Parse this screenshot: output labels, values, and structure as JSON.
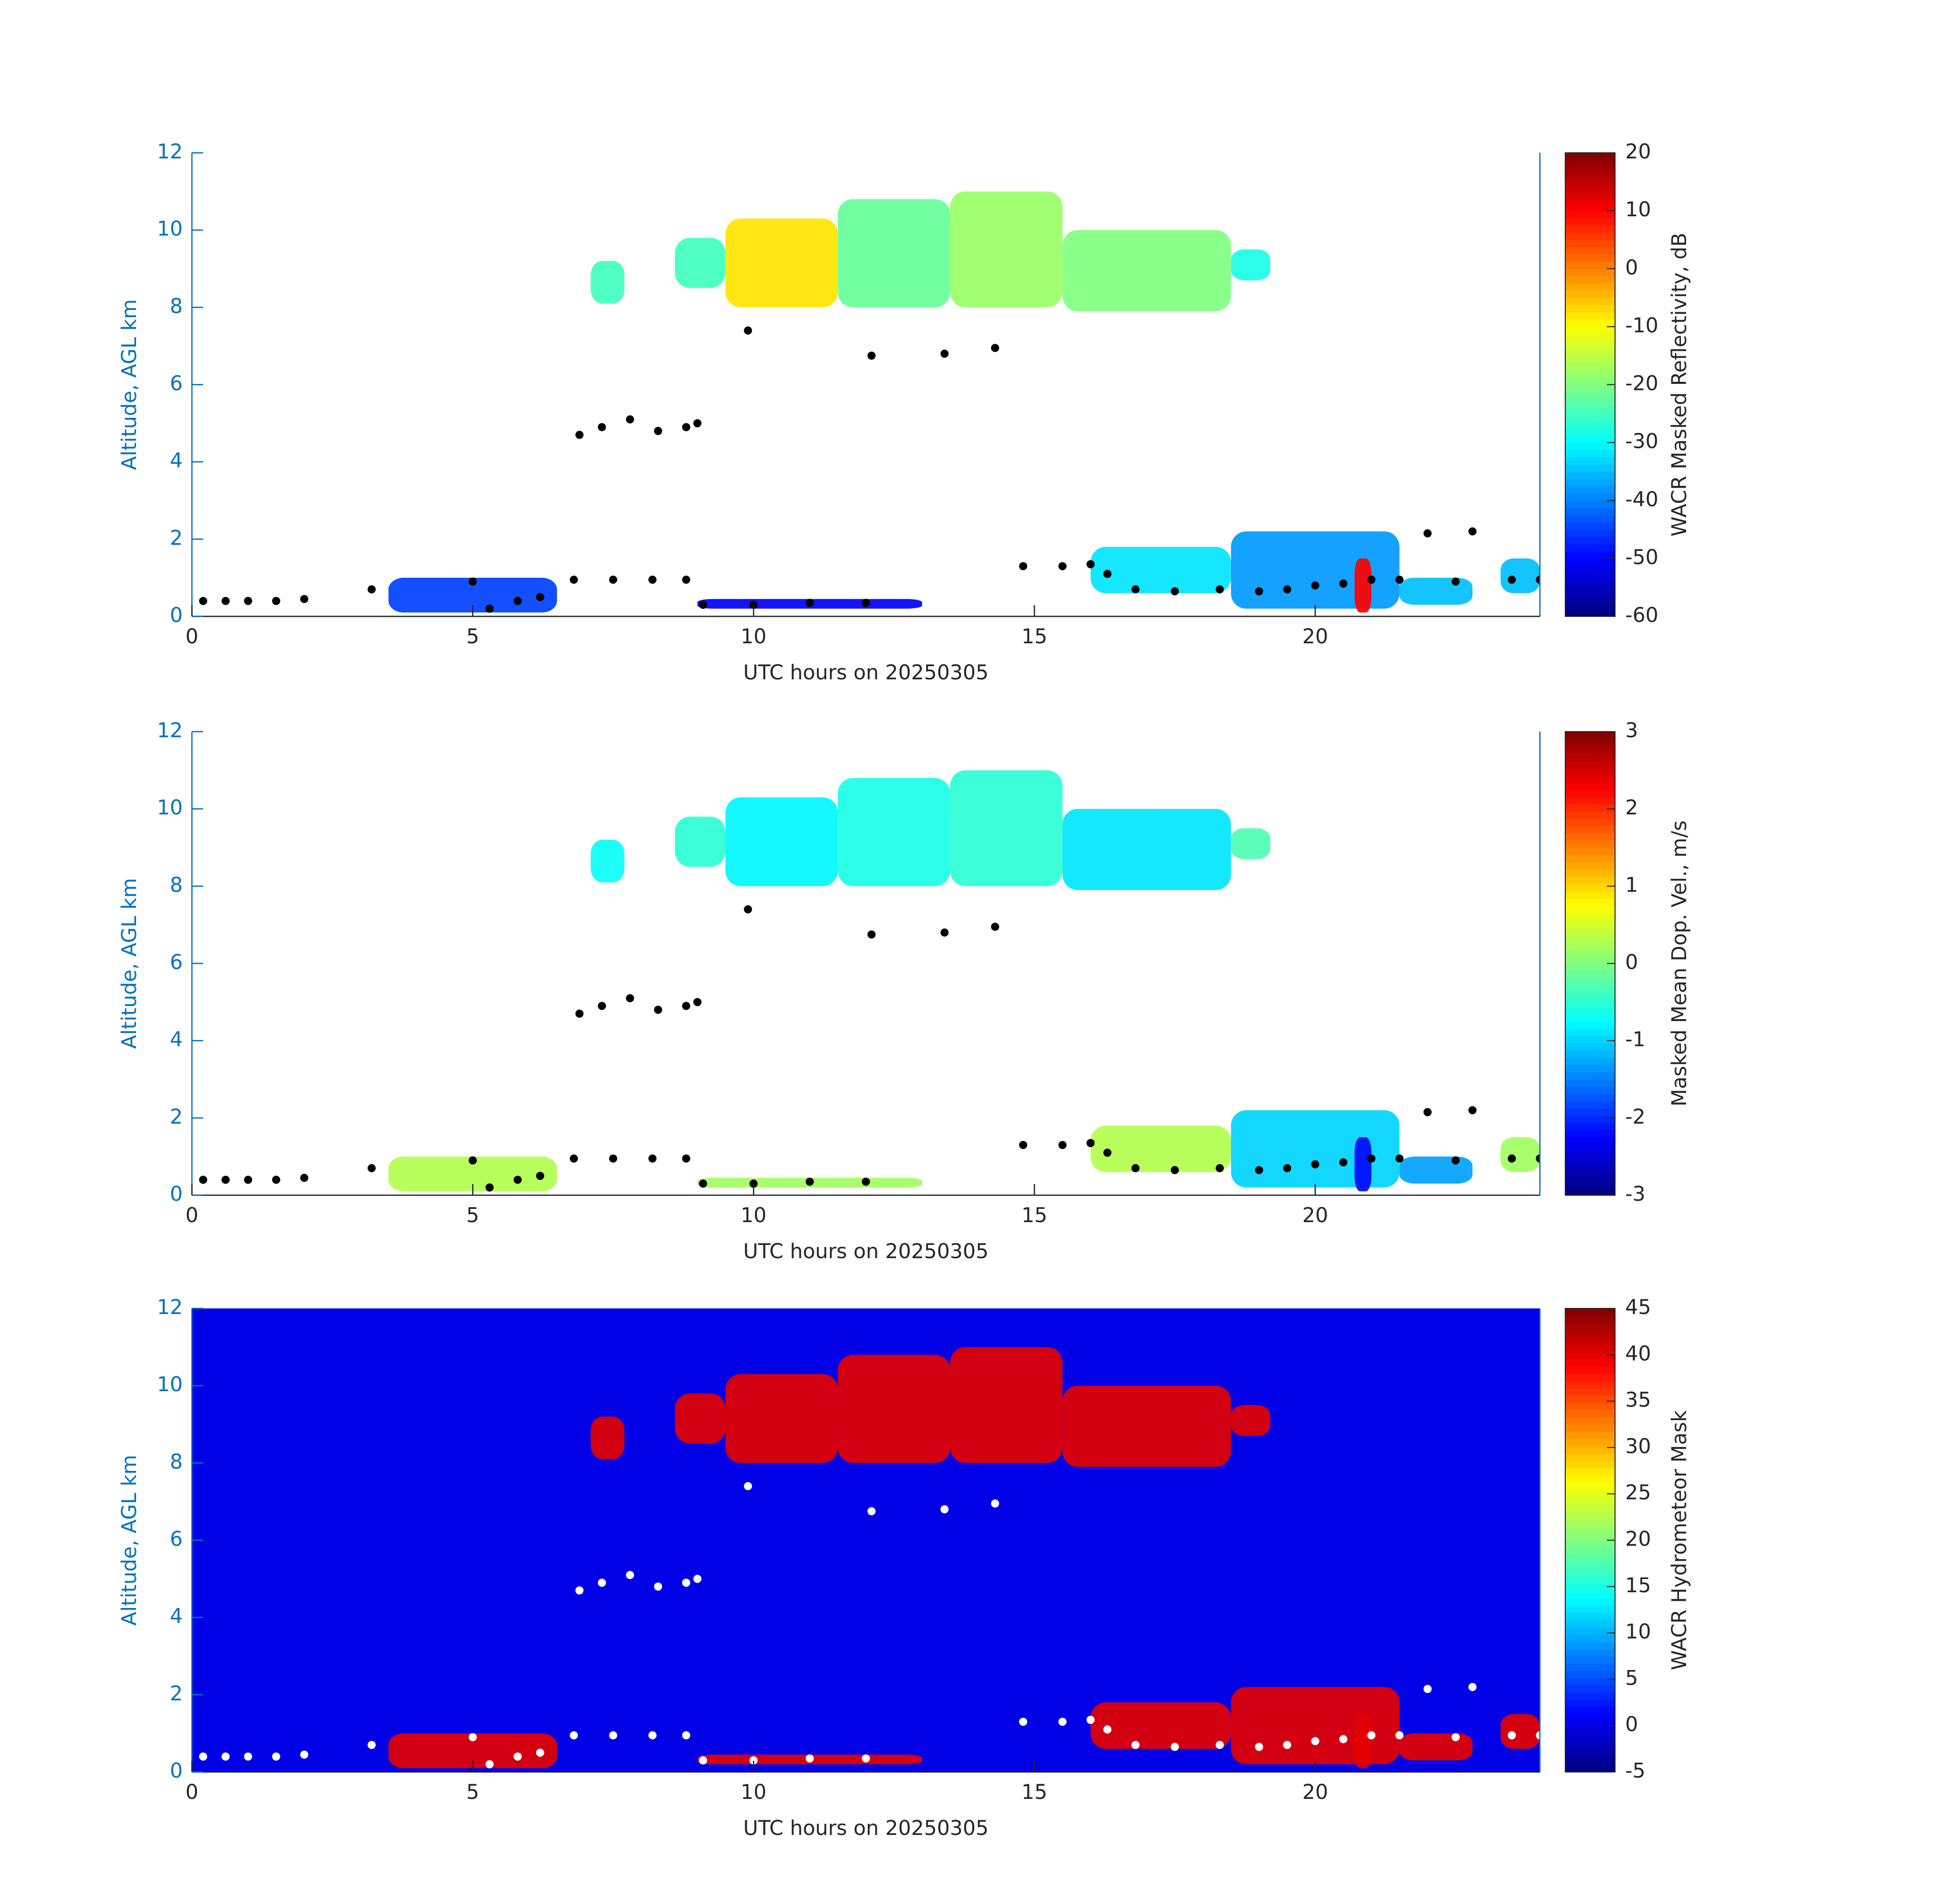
{
  "chart_data": [
    {
      "type": "heatmap",
      "colormap": "jet",
      "x_label": "UTC hours on 20250305",
      "y_label": "Altitude, AGL km",
      "colorbar_label": "WACR Masked Reflectivity, dB",
      "xlim": [
        0,
        24
      ],
      "xticks": [
        0,
        5,
        10,
        15,
        20
      ],
      "ylim": [
        0,
        12
      ],
      "yticks": [
        0,
        2,
        4,
        6,
        8,
        10,
        12
      ],
      "clim": [
        -60,
        20
      ],
      "cticks": [
        -60,
        -50,
        -40,
        -30,
        -20,
        -10,
        0,
        10,
        20
      ],
      "regions": [
        {
          "x": [
            7.1,
            7.7
          ],
          "y": [
            8.1,
            9.2
          ],
          "value": -25
        },
        {
          "x": [
            8.6,
            9.5
          ],
          "y": [
            8.5,
            9.8
          ],
          "value": -25
        },
        {
          "x": [
            9.5,
            11.5
          ],
          "y": [
            8.0,
            10.3
          ],
          "value": -8
        },
        {
          "x": [
            11.5,
            13.5
          ],
          "y": [
            8.0,
            10.8
          ],
          "value": -22
        },
        {
          "x": [
            13.5,
            15.5
          ],
          "y": [
            8.0,
            11.0
          ],
          "value": -18
        },
        {
          "x": [
            15.5,
            18.5
          ],
          "y": [
            7.9,
            10.0
          ],
          "value": -20
        },
        {
          "x": [
            18.5,
            19.2
          ],
          "y": [
            8.7,
            9.5
          ],
          "value": -28
        },
        {
          "x": [
            3.5,
            6.5
          ],
          "y": [
            0.1,
            1.0
          ],
          "value": -45
        },
        {
          "x": [
            9.0,
            13.0
          ],
          "y": [
            0.2,
            0.45
          ],
          "value": -50
        },
        {
          "x": [
            16.0,
            18.5
          ],
          "y": [
            0.6,
            1.8
          ],
          "value": -32
        },
        {
          "x": [
            18.5,
            21.5
          ],
          "y": [
            0.2,
            2.2
          ],
          "value": -38
        },
        {
          "x": [
            20.7,
            21.0
          ],
          "y": [
            0.1,
            1.5
          ],
          "value": 10
        },
        {
          "x": [
            21.5,
            22.8
          ],
          "y": [
            0.3,
            1.0
          ],
          "value": -35
        },
        {
          "x": [
            23.3,
            24.0
          ],
          "y": [
            0.6,
            1.5
          ],
          "value": -35
        }
      ],
      "points": {
        "color": "#000000",
        "x": [
          0.2,
          0.6,
          1.0,
          1.5,
          2.0,
          3.2,
          5.0,
          5.3,
          5.8,
          6.2,
          6.8,
          7.5,
          8.2,
          8.8,
          6.9,
          7.3,
          7.8,
          8.3,
          8.8,
          9.0,
          9.1,
          10,
          11,
          12,
          9.9,
          12.1,
          13.4,
          14.3,
          14.8,
          15.5,
          16.0,
          16.3,
          16.8,
          17.5,
          18.3,
          19.0,
          19.5,
          20.0,
          20.5,
          21.0,
          21.5,
          22.0,
          22.5,
          22.8,
          23.5,
          24
        ],
        "y": [
          0.4,
          0.4,
          0.4,
          0.4,
          0.45,
          0.7,
          0.9,
          0.2,
          0.4,
          0.5,
          0.95,
          0.95,
          0.95,
          0.95,
          4.7,
          4.9,
          5.1,
          4.8,
          4.9,
          5.0,
          0.3,
          0.3,
          0.35,
          0.35,
          7.4,
          6.75,
          6.8,
          6.95,
          1.3,
          1.3,
          1.35,
          1.1,
          0.7,
          0.65,
          0.7,
          0.65,
          0.7,
          0.8,
          0.85,
          0.95,
          0.95,
          2.15,
          0.9,
          2.2,
          0.95,
          0.95
        ]
      }
    },
    {
      "type": "heatmap",
      "colormap": "jet",
      "x_label": "UTC hours on 20250305",
      "y_label": "Altitude, AGL km",
      "colorbar_label": "Masked Mean Dop. Vel., m/s",
      "xlim": [
        0,
        24
      ],
      "xticks": [
        0,
        5,
        10,
        15,
        20
      ],
      "ylim": [
        0,
        12
      ],
      "yticks": [
        0,
        2,
        4,
        6,
        8,
        10,
        12
      ],
      "clim": [
        -3,
        3
      ],
      "cticks": [
        -3,
        -2,
        -1,
        0,
        1,
        2,
        3
      ],
      "regions": [
        {
          "x": [
            7.1,
            7.7
          ],
          "y": [
            8.1,
            9.2
          ],
          "value": -0.7
        },
        {
          "x": [
            8.6,
            9.5
          ],
          "y": [
            8.5,
            9.8
          ],
          "value": -0.5
        },
        {
          "x": [
            9.5,
            11.5
          ],
          "y": [
            8.0,
            10.3
          ],
          "value": -0.8
        },
        {
          "x": [
            11.5,
            13.5
          ],
          "y": [
            8.0,
            10.8
          ],
          "value": -0.6
        },
        {
          "x": [
            13.5,
            15.5
          ],
          "y": [
            8.0,
            11.0
          ],
          "value": -0.5
        },
        {
          "x": [
            15.5,
            18.5
          ],
          "y": [
            7.9,
            10.0
          ],
          "value": -0.9
        },
        {
          "x": [
            18.5,
            19.2
          ],
          "y": [
            8.7,
            9.5
          ],
          "value": -0.3
        },
        {
          "x": [
            3.5,
            6.5
          ],
          "y": [
            0.1,
            1.0
          ],
          "value": 0.3
        },
        {
          "x": [
            9.0,
            13.0
          ],
          "y": [
            0.2,
            0.45
          ],
          "value": 0.2
        },
        {
          "x": [
            16.0,
            18.5
          ],
          "y": [
            0.6,
            1.8
          ],
          "value": 0.3
        },
        {
          "x": [
            18.5,
            21.5
          ],
          "y": [
            0.2,
            2.2
          ],
          "value": -1.0
        },
        {
          "x": [
            20.7,
            21.0
          ],
          "y": [
            0.1,
            1.5
          ],
          "value": -2.2
        },
        {
          "x": [
            21.5,
            22.8
          ],
          "y": [
            0.3,
            1.0
          ],
          "value": -1.3
        },
        {
          "x": [
            23.3,
            24.0
          ],
          "y": [
            0.6,
            1.5
          ],
          "value": 0.2
        }
      ],
      "points": {
        "color": "#000000",
        "x": [
          0.2,
          0.6,
          1.0,
          1.5,
          2.0,
          3.2,
          5.0,
          5.3,
          5.8,
          6.2,
          6.8,
          7.5,
          8.2,
          8.8,
          6.9,
          7.3,
          7.8,
          8.3,
          8.8,
          9.0,
          9.1,
          10,
          11,
          12,
          9.9,
          12.1,
          13.4,
          14.3,
          14.8,
          15.5,
          16.0,
          16.3,
          16.8,
          17.5,
          18.3,
          19.0,
          19.5,
          20.0,
          20.5,
          21.0,
          21.5,
          22.0,
          22.5,
          22.8,
          23.5,
          24
        ],
        "y": [
          0.4,
          0.4,
          0.4,
          0.4,
          0.45,
          0.7,
          0.9,
          0.2,
          0.4,
          0.5,
          0.95,
          0.95,
          0.95,
          0.95,
          4.7,
          4.9,
          5.1,
          4.8,
          4.9,
          5.0,
          0.3,
          0.3,
          0.35,
          0.35,
          7.4,
          6.75,
          6.8,
          6.95,
          1.3,
          1.3,
          1.35,
          1.1,
          0.7,
          0.65,
          0.7,
          0.65,
          0.7,
          0.8,
          0.85,
          0.95,
          0.95,
          2.15,
          0.9,
          2.2,
          0.95,
          0.95
        ]
      }
    },
    {
      "type": "heatmap",
      "colormap": "jet",
      "x_label": "UTC hours on 20250305",
      "y_label": "Altitude, AGL km",
      "colorbar_label": "WACR Hydrometeor Mask",
      "xlim": [
        0,
        24
      ],
      "xticks": [
        0,
        5,
        10,
        15,
        20
      ],
      "ylim": [
        0,
        12
      ],
      "yticks": [
        0,
        2,
        4,
        6,
        8,
        10,
        12
      ],
      "clim": [
        -5,
        45
      ],
      "cticks": [
        -5,
        0,
        5,
        10,
        15,
        20,
        25,
        30,
        35,
        40,
        45
      ],
      "background_value": 0,
      "regions": [
        {
          "x": [
            7.1,
            7.7
          ],
          "y": [
            8.1,
            9.2
          ],
          "value": 40
        },
        {
          "x": [
            8.6,
            9.5
          ],
          "y": [
            8.5,
            9.8
          ],
          "value": 40
        },
        {
          "x": [
            9.5,
            11.5
          ],
          "y": [
            8.0,
            10.3
          ],
          "value": 40
        },
        {
          "x": [
            11.5,
            13.5
          ],
          "y": [
            8.0,
            10.8
          ],
          "value": 40
        },
        {
          "x": [
            13.5,
            15.5
          ],
          "y": [
            8.0,
            11.0
          ],
          "value": 40
        },
        {
          "x": [
            15.5,
            18.5
          ],
          "y": [
            7.9,
            10.0
          ],
          "value": 40
        },
        {
          "x": [
            18.5,
            19.2
          ],
          "y": [
            8.7,
            9.5
          ],
          "value": 40
        },
        {
          "x": [
            3.5,
            6.5
          ],
          "y": [
            0.1,
            1.0
          ],
          "value": 40
        },
        {
          "x": [
            9.0,
            13.0
          ],
          "y": [
            0.2,
            0.45
          ],
          "value": 40
        },
        {
          "x": [
            16.0,
            18.5
          ],
          "y": [
            0.6,
            1.8
          ],
          "value": 40
        },
        {
          "x": [
            18.5,
            21.5
          ],
          "y": [
            0.2,
            2.2
          ],
          "value": 40
        },
        {
          "x": [
            20.7,
            21.0
          ],
          "y": [
            0.1,
            1.5
          ],
          "value": 40
        },
        {
          "x": [
            21.5,
            22.8
          ],
          "y": [
            0.3,
            1.0
          ],
          "value": 40
        },
        {
          "x": [
            23.3,
            24.0
          ],
          "y": [
            0.6,
            1.5
          ],
          "value": 40
        }
      ],
      "points": {
        "color": "#ffffff",
        "x": [
          0.2,
          0.6,
          1.0,
          1.5,
          2.0,
          3.2,
          5.0,
          5.3,
          5.8,
          6.2,
          6.8,
          7.5,
          8.2,
          8.8,
          6.9,
          7.3,
          7.8,
          8.3,
          8.8,
          9.0,
          9.1,
          10,
          11,
          12,
          9.9,
          12.1,
          13.4,
          14.3,
          14.8,
          15.5,
          16.0,
          16.3,
          16.8,
          17.5,
          18.3,
          19.0,
          19.5,
          20.0,
          20.5,
          21.0,
          21.5,
          22.0,
          22.5,
          22.8,
          23.5,
          24
        ],
        "y": [
          0.4,
          0.4,
          0.4,
          0.4,
          0.45,
          0.7,
          0.9,
          0.2,
          0.4,
          0.5,
          0.95,
          0.95,
          0.95,
          0.95,
          4.7,
          4.9,
          5.1,
          4.8,
          4.9,
          5.0,
          0.3,
          0.3,
          0.35,
          0.35,
          7.4,
          6.75,
          6.8,
          6.95,
          1.3,
          1.3,
          1.35,
          1.1,
          0.7,
          0.65,
          0.7,
          0.65,
          0.7,
          0.8,
          0.85,
          0.95,
          0.95,
          2.15,
          0.9,
          2.2,
          0.95,
          0.95
        ]
      }
    }
  ]
}
